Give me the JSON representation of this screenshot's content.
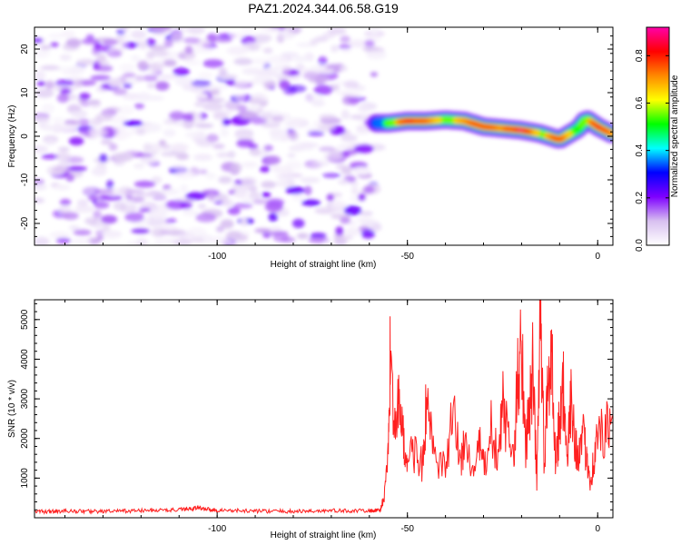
{
  "figure": {
    "title": "PAZ1.2024.344.06.58.G19"
  },
  "chart_data": [
    {
      "type": "heatmap",
      "xlabel": "Height of straight line (km)",
      "ylabel": "Frequency (Hz)",
      "xlim": [
        -148,
        4
      ],
      "ylim": [
        -25,
        25
      ],
      "xticks": [
        -100,
        -50,
        0
      ],
      "xtick_labels": [
        "-100",
        "-50",
        "0"
      ],
      "yticks": [
        -20,
        -10,
        0,
        10,
        20
      ],
      "ytick_labels": [
        "-20",
        "-10",
        "0",
        "10",
        "20"
      ],
      "colorbar": {
        "label": "Normalized spectral amplitude",
        "range": [
          0,
          0.92
        ],
        "ticks": [
          0.0,
          0.2,
          0.4,
          0.6,
          0.8
        ],
        "tick_labels": [
          "0.0",
          "0.2",
          "0.4",
          "0.6",
          "0.8"
        ],
        "colormap": [
          "#ffffff",
          "#d8c0f0",
          "#7e00ff",
          "#0000ff",
          "#00ffff",
          "#00ff00",
          "#ffff00",
          "#ff8800",
          "#ff0000",
          "#ff00aa"
        ]
      },
      "noise_region": {
        "x": [
          -148,
          -58
        ],
        "amplitude_range": [
          0.02,
          0.12
        ]
      },
      "signal_ridge": {
        "x": [
          -58,
          -55,
          -50,
          -45,
          -40,
          -35,
          -30,
          -25,
          -20,
          -15,
          -10,
          -5,
          -3,
          0,
          4
        ],
        "freq": [
          3,
          3,
          3.5,
          3.5,
          3.8,
          3.5,
          2.2,
          1.8,
          1.4,
          0.6,
          -0.8,
          1.8,
          4.0,
          2.2,
          0.4
        ],
        "peak_amplitude": [
          0.3,
          0.5,
          0.85,
          0.75,
          0.6,
          0.7,
          0.8,
          0.7,
          0.9,
          0.6,
          0.8,
          0.5,
          0.6,
          0.85,
          0.7
        ]
      },
      "grid": false
    },
    {
      "type": "line",
      "xlabel": "Height of straight line (km)",
      "ylabel": "SNR (10 * v/v)",
      "xlim": [
        -148,
        4
      ],
      "ylim": [
        0,
        5500
      ],
      "xticks": [
        -100,
        -50,
        0
      ],
      "xtick_labels": [
        "-100",
        "-50",
        "0"
      ],
      "yticks": [
        1000,
        2000,
        3000,
        4000,
        5000
      ],
      "ytick_labels": [
        "1000",
        "2000",
        "3000",
        "4000",
        "5000"
      ],
      "series": [
        {
          "color": "#ff2020",
          "x": [
            -148,
            -140,
            -130,
            -120,
            -110,
            -105,
            -100,
            -90,
            -80,
            -70,
            -60,
            -57,
            -56,
            -55,
            -54.5,
            -53,
            -52,
            -51,
            -50,
            -48,
            -46,
            -45,
            -43,
            -40,
            -38,
            -36,
            -35,
            -33,
            -31,
            -30,
            -28,
            -26,
            -25,
            -24,
            -22,
            -21,
            -20,
            -19,
            -18,
            -17,
            -16,
            -15,
            -14,
            -13,
            -12,
            -11,
            -10,
            -9,
            -8,
            -7,
            -6,
            -5,
            -4,
            -3,
            -2,
            -1,
            0,
            2,
            4
          ],
          "y": [
            150,
            170,
            160,
            180,
            200,
            250,
            190,
            170,
            160,
            180,
            170,
            200,
            600,
            1500,
            4300,
            2000,
            3200,
            1800,
            1500,
            1700,
            1300,
            2800,
            1500,
            1200,
            2600,
            1400,
            2000,
            1100,
            1800,
            1300,
            2200,
            1400,
            3000,
            2200,
            1500,
            3600,
            4600,
            1800,
            2600,
            3800,
            900,
            5300,
            1200,
            3700,
            4000,
            1400,
            2500,
            3300,
            1200,
            3200,
            2000,
            1500,
            2000,
            1700,
            1000,
            1400,
            2100,
            2100,
            2500
          ]
        }
      ],
      "grid": false
    }
  ]
}
